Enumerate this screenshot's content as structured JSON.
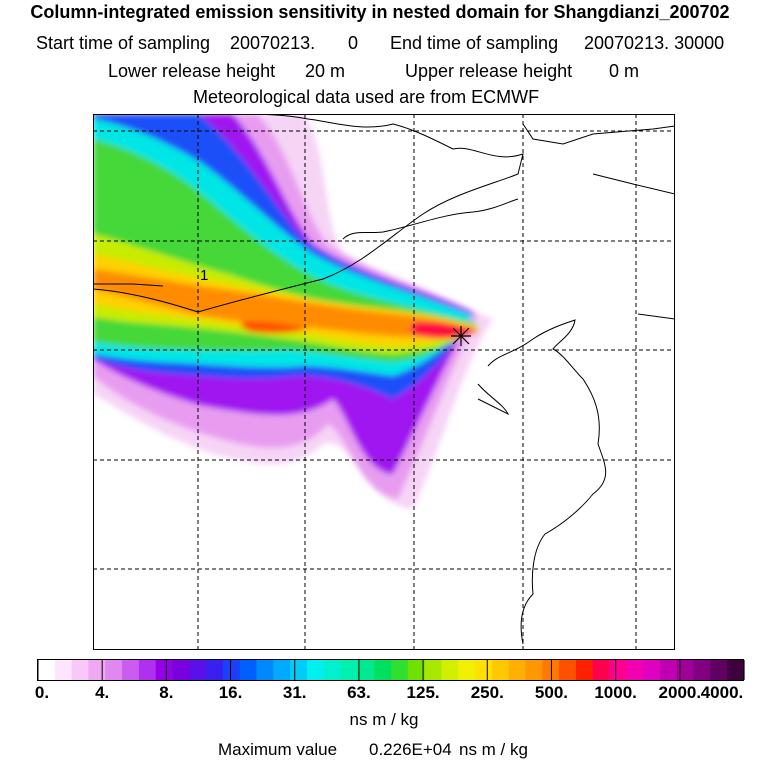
{
  "header": {
    "title": "Column-integrated emission sensitivity in nested domain for Shangdianzi_200702",
    "start_label": "Start time of sampling",
    "start_value": "20070213.",
    "start_hms": "0",
    "end_label": "End time of sampling",
    "end_value": "20070213. 30000",
    "lower_label": "Lower release height",
    "lower_value": "20 m",
    "upper_label": "Upper release height",
    "upper_value": "0 m",
    "met_text": "Meteorological data used are from ECMWF"
  },
  "map": {
    "marker_label": "1",
    "release_marker": "release-site-star"
  },
  "colorbar": {
    "tick_labels": [
      "0.",
      "4.",
      "8.",
      "16.",
      "31.",
      "63.",
      "125.",
      "250.",
      "500.",
      "1000.",
      "2000.",
      "4000."
    ],
    "units": "ns m / kg",
    "colors": [
      "#ffffff",
      "#fde6fd",
      "#f8c8f8",
      "#f0a8f2",
      "#e088f0",
      "#cc5cf0",
      "#b030f0",
      "#9500e8",
      "#7a00e0",
      "#5a10e8",
      "#3a20f0",
      "#1a40f8",
      "#0060ff",
      "#0088ff",
      "#00aaff",
      "#00ccf8",
      "#00f0f0",
      "#00f0d0",
      "#00f0b0",
      "#00e890",
      "#00e060",
      "#30e030",
      "#70e000",
      "#a8e800",
      "#d0f000",
      "#f0f000",
      "#ffe000",
      "#ffc800",
      "#ffb000",
      "#ff9800",
      "#ff7800",
      "#ff5000",
      "#ff2000",
      "#ff0050",
      "#ff0090",
      "#f000b0",
      "#e000c0",
      "#c000b0",
      "#a00098",
      "#800080",
      "#600060",
      "#400040"
    ]
  },
  "footer": {
    "max_label": "Maximum value",
    "max_value": "0.226E+04",
    "max_units": "ns m / kg"
  }
}
